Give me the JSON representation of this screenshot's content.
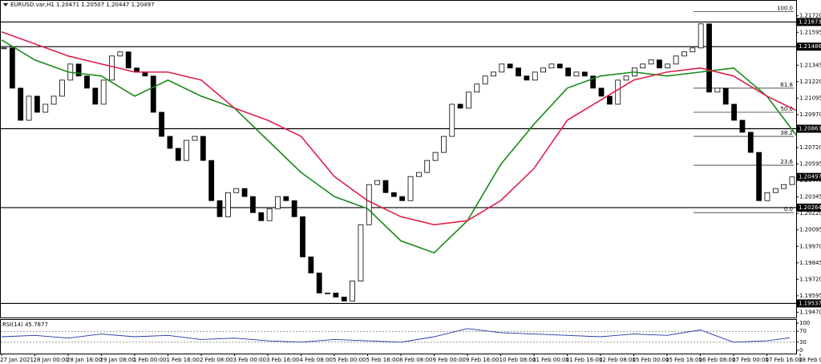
{
  "chart_data": [
    {
      "type": "candlestick",
      "title": "EURUSD.var,H1  1.20471 1.20507 1.20447 1.20497",
      "categories": [
        "27 Jan 2021",
        "28 Jan 00:00",
        "28 Jan 16:00",
        "29 Jan 08:00",
        "1 Feb 00:00",
        "1 Feb 16:00",
        "2 Feb 08:00",
        "3 Feb 00:00",
        "3 Feb 16:00",
        "4 Feb 08:00",
        "5 Feb 00:00",
        "5 Feb 16:00",
        "8 Feb 08:00",
        "9 Feb 00:00",
        "9 Feb 16:00",
        "10 Feb 08:00",
        "11 Feb 00:00",
        "11 Feb 16:00",
        "12 Feb 08:00",
        "15 Feb 00:00",
        "15 Feb 16:00",
        "16 Feb 08:00",
        "17 Feb 00:00",
        "17 Feb 16:00",
        "18 Feb 08:00"
      ],
      "close": [
        1.21476,
        1.21171,
        1.20927,
        1.2111,
        1.20988,
        1.21049,
        1.2111,
        1.21232,
        1.21354,
        1.21263,
        1.21171,
        1.21049,
        1.21232,
        1.21415,
        1.21446,
        1.21324,
        1.21293,
        1.21263,
        1.20988,
        1.20805,
        1.20714,
        1.20622,
        1.20775,
        1.20805,
        1.20622,
        1.20317,
        1.20195,
        1.20378,
        1.20409,
        1.20348,
        1.20226,
        1.20165,
        1.20256,
        1.20348,
        1.20317,
        1.20195,
        1.1989,
        1.19768,
        1.19616,
        1.19616,
        1.19585,
        1.19555,
        1.19707,
        1.20134,
        1.20439,
        1.2047,
        1.20378,
        1.20348,
        1.20317,
        1.205,
        1.20531,
        1.20622,
        1.20683,
        1.20805,
        1.21049,
        1.21019,
        1.21141,
        1.21202,
        1.21263,
        1.21293,
        1.21354,
        1.21324,
        1.21263,
        1.21232,
        1.21293,
        1.21324,
        1.21354,
        1.21324,
        1.21263,
        1.21293,
        1.21263,
        1.21171,
        1.2111,
        1.21049,
        1.21232,
        1.21263,
        1.21324,
        1.21354,
        1.21385,
        1.21324,
        1.21354,
        1.21415,
        1.21446,
        1.21476,
        1.21659,
        1.21141,
        1.21171,
        1.21049,
        1.20927,
        1.20836,
        1.20683,
        1.20317,
        1.20378,
        1.20409,
        1.20439,
        1.20497
      ],
      "lines": [
        {
          "color": "#1a8a1a",
          "values": [
            1.21537,
            1.21385,
            1.21293,
            1.21263,
            1.2111,
            1.21232,
            1.2111,
            1.21019,
            1.20775,
            1.20531,
            1.20348,
            1.20256,
            1.20012,
            1.19921,
            1.20165,
            1.20592,
            1.20897,
            1.21171,
            1.21263,
            1.21293,
            1.21263,
            1.21293,
            1.21324,
            1.2111,
            1.20775
          ]
        },
        {
          "color": "#e0204a",
          "values": [
            1.21598,
            1.21507,
            1.21415,
            1.21354,
            1.21293,
            1.21293,
            1.21232,
            1.21019,
            1.20927,
            1.20805,
            1.205,
            1.20317,
            1.20195,
            1.20134,
            1.20165,
            1.20317,
            1.20561,
            1.20927,
            1.2108,
            1.21232,
            1.21293,
            1.21324,
            1.21263,
            1.2111,
            1.20988
          ]
        }
      ],
      "levels": [
        1.21673,
        1.21486,
        1.20863,
        1.20264,
        1.19537
      ],
      "current_price": 1.20497,
      "fib": [
        {
          "level": {
            "value": 100,
            "label": "100.0"
          },
          "price": 1.21751
        },
        {
          "level": 61.8,
          "price": 1.21171
        },
        {
          "level": {
            "value": 50,
            "label": "50.0"
          },
          "price": 1.20988
        },
        {
          "level": 38.2,
          "price": 1.20805
        },
        {
          "level": 23.6,
          "price": 1.20586
        },
        {
          "level": {
            "value": 0,
            "label": "0.0"
          },
          "price": 1.20226
        }
      ],
      "ylim": [
        1.1943,
        1.2184
      ],
      "yticks": [
        {
          "value": 1.2172,
          "label": "1.21720"
        },
        1.21595,
        {
          "value": 1.2147,
          "label": "1.21470"
        },
        1.21345,
        {
          "value": 1.2122,
          "label": "1.21220"
        },
        1.21095,
        {
          "value": 1.2097,
          "label": "1.20970"
        },
        1.20845,
        {
          "value": 1.2072,
          "label": "1.20720"
        },
        1.20595,
        {
          "value": 1.2047,
          "label": "1.20470"
        },
        1.20345,
        {
          "value": 1.2022,
          "label": "1.20220"
        },
        1.20095,
        {
          "value": 1.1997,
          "label": "1.19970"
        },
        1.19845,
        {
          "value": 1.1972,
          "label": "1.19720"
        },
        1.19595,
        {
          "value": 1.1947,
          "label": "1.19470"
        }
      ]
    },
    {
      "type": "line",
      "title": "RSI(14) 45.7877",
      "color": "#2233aa",
      "values": [
        50,
        55,
        45,
        60,
        50,
        55,
        40,
        45,
        35,
        30,
        40,
        35,
        30,
        50,
        80,
        65,
        60,
        55,
        50,
        60,
        55,
        75,
        30,
        35,
        46
      ],
      "ylim": [
        0,
        100
      ],
      "yticks": [
        100,
        70,
        30,
        0
      ],
      "dotted": [
        70,
        30
      ]
    }
  ]
}
